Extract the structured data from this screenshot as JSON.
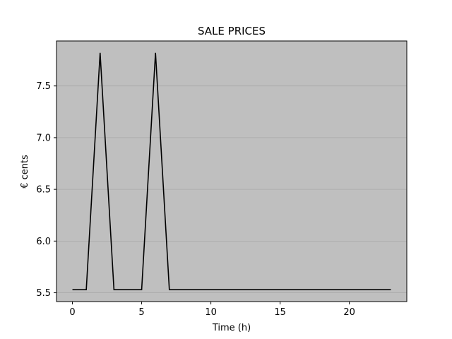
{
  "chart_data": {
    "type": "line",
    "title": "SALE PRICES",
    "xlabel": "Time (h)",
    "ylabel": "€ cents",
    "xlim": [
      -1.15,
      24.15
    ],
    "ylim": [
      5.415,
      7.935
    ],
    "xticks": [
      0,
      5,
      10,
      15,
      20
    ],
    "yticks": [
      5.5,
      6.0,
      6.5,
      7.0,
      7.5
    ],
    "ytick_labels": [
      "5.5",
      "6.0",
      "6.5",
      "7.0",
      "7.5"
    ],
    "grid": "horizontal",
    "series": [
      {
        "x": [
          0,
          1,
          2,
          3,
          4,
          5,
          6,
          7,
          8,
          9,
          10,
          11,
          12,
          13,
          14,
          15,
          16,
          17,
          18,
          19,
          20,
          21,
          22,
          23
        ],
        "values": [
          5.53,
          5.53,
          7.82,
          5.53,
          5.53,
          5.53,
          7.82,
          5.53,
          5.53,
          5.53,
          5.53,
          5.53,
          5.53,
          5.53,
          5.53,
          5.53,
          5.53,
          5.53,
          5.53,
          5.53,
          5.53,
          5.53,
          5.53,
          5.53
        ]
      }
    ]
  },
  "style": {
    "plot_background": "#bfbfbf",
    "line_color": "#000000",
    "grid_color": "#a9a9a9"
  }
}
